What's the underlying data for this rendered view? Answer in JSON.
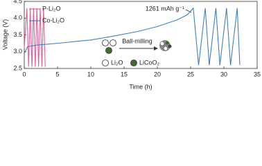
{
  "chart_data": {
    "type": "line",
    "x_label": "Time (h)",
    "y_label": "Voltage (V)",
    "xlim": [
      0,
      35
    ],
    "xticks": [
      0,
      5,
      10,
      15,
      20,
      25,
      30,
      35
    ],
    "ylim": [
      2.5,
      4.5
    ],
    "yticks": [
      2.5,
      {
        "value": 3,
        "label": "3.0"
      },
      3.5,
      {
        "value": 4,
        "label": "4.0"
      },
      4.5
    ],
    "grid": false,
    "legend": "upper left",
    "series": [
      {
        "name": "P-Li₂O",
        "color": "#e0609a",
        "x": [
          0,
          0.4,
          0.65,
          0.9,
          1.15,
          1.4,
          1.65,
          1.9,
          2.15,
          2.4,
          2.65,
          2.9,
          3.15
        ],
        "values": [
          3.1,
          4.3,
          2.55,
          4.3,
          2.55,
          4.3,
          2.55,
          4.3,
          2.55,
          4.3,
          2.55,
          4.3,
          2.55
        ]
      },
      {
        "name": "Co-Li₂O",
        "color": "#3f7fc0",
        "x": [
          0,
          0.5,
          2,
          5,
          10,
          13,
          17,
          20,
          23,
          24.5,
          25.4,
          26.2,
          27.2,
          27.8,
          28.8,
          29.4,
          30.4,
          31.0,
          32.0,
          32.4
        ],
        "values": [
          2.95,
          3.15,
          3.2,
          3.25,
          3.35,
          3.45,
          3.6,
          3.75,
          3.95,
          4.1,
          4.3,
          2.6,
          4.3,
          2.6,
          4.3,
          2.6,
          4.3,
          2.6,
          4.3,
          2.6
        ]
      }
    ],
    "annotations": {
      "capacity": "1261 mAh g⁻¹",
      "process": "Ball-milling",
      "key_li2o": "Li₂O",
      "key_licoo2": "LiCoO₂"
    }
  }
}
